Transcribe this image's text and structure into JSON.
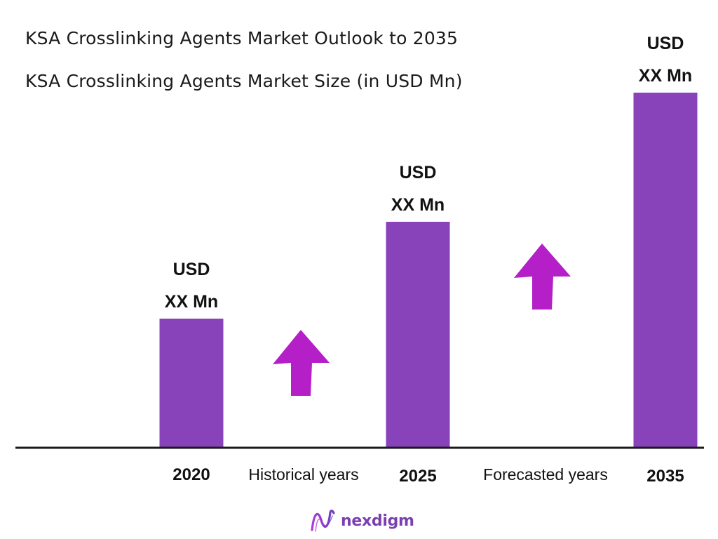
{
  "title": "KSA Crosslinking Agents Market Outlook to 2035",
  "subtitle": "KSA Crosslinking Agents Market Size (in USD Mn)",
  "colors": {
    "bar": "#8843bb",
    "arrow": "#b41fc8",
    "axis": "#1a1a1a",
    "brand_text": "#7a3fb0"
  },
  "chart_data": {
    "type": "bar",
    "categories": [
      "2020",
      "2025",
      "2035"
    ],
    "values": [
      100,
      175,
      275
    ],
    "ylim": [
      0,
      300
    ],
    "data_labels": [
      [
        "USD",
        "XX Mn"
      ],
      [
        "USD",
        "XX Mn"
      ],
      [
        "USD",
        "XX Mn"
      ]
    ],
    "period_labels": [
      "Historical years",
      "Forecasted years"
    ],
    "annotations": [
      "up-arrow",
      "up-arrow"
    ],
    "grid": false,
    "legend": "none"
  },
  "brand": {
    "name": "nexdigm",
    "icon": "nexdigm-logo-icon"
  }
}
